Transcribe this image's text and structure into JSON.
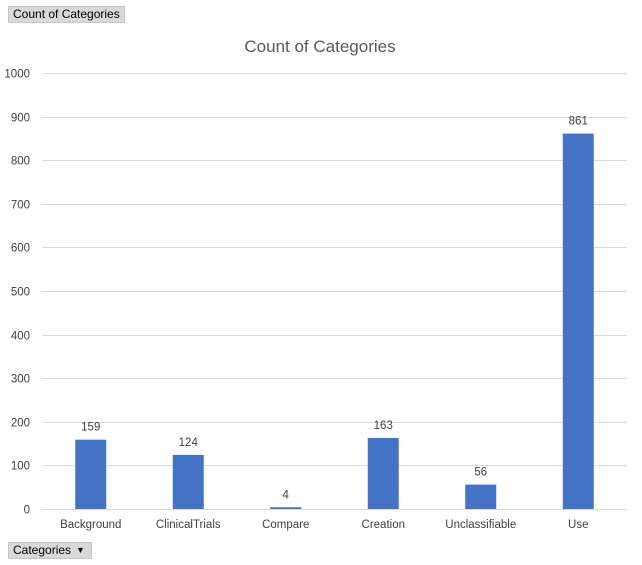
{
  "pivot": {
    "value_field": "Count of Categories",
    "axis_field": "Categories"
  },
  "colors": {
    "bar": "#4472C4"
  },
  "chart_data": {
    "type": "bar",
    "title": "Count of Categories",
    "categories": [
      "Background",
      "ClinicalTrials",
      "Compare",
      "Creation",
      "Unclassifiable",
      "Use"
    ],
    "values": [
      159,
      124,
      4,
      163,
      56,
      861
    ],
    "ylim": [
      0,
      1000
    ],
    "yticks": [
      0,
      100,
      200,
      300,
      400,
      500,
      600,
      700,
      800,
      900,
      1000
    ],
    "grid": true,
    "data_labels": true
  }
}
